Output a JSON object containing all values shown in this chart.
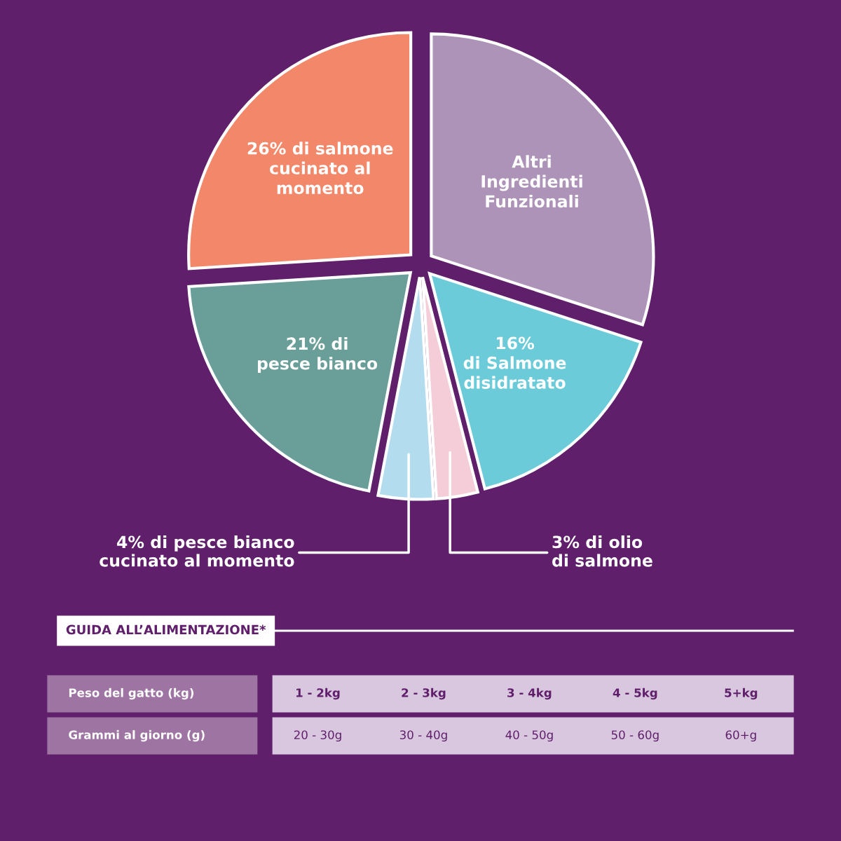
{
  "chart_data": [
    {
      "type": "pie",
      "categories": [
        "Altri\nIngredienti\nFunzionali",
        "16%\ndi Salmone\ndisidratato",
        "3% di olio\ndi salmone",
        "4% di pesce bianco\ncucinato al momento",
        "21% di\npesce bianco",
        "26% di salmone\ncucinato al\nmomento"
      ],
      "values": [
        30,
        16,
        3,
        4,
        21,
        26
      ],
      "colors": [
        "#ad93b8",
        "#6ccbd8",
        "#f5cdd8",
        "#b3ddef",
        "#6a9e98",
        "#f2876a"
      ],
      "legend": false
    },
    {
      "type": "other",
      "title": "GUIDA ALL’ALIMENTAZIONE*",
      "xlabel": "Peso del gatto (kg)",
      "categories": [
        "1 - 2kg",
        "2 - 3kg",
        "3 - 4kg",
        "4 - 5kg",
        "5+kg"
      ],
      "y_categories": [
        "Grammi al giorno (g)"
      ],
      "cell_labels": [
        [
          "20 - 30g",
          "30 - 40g",
          "40 - 50g",
          "50 - 60g",
          "60+g"
        ]
      ]
    }
  ]
}
